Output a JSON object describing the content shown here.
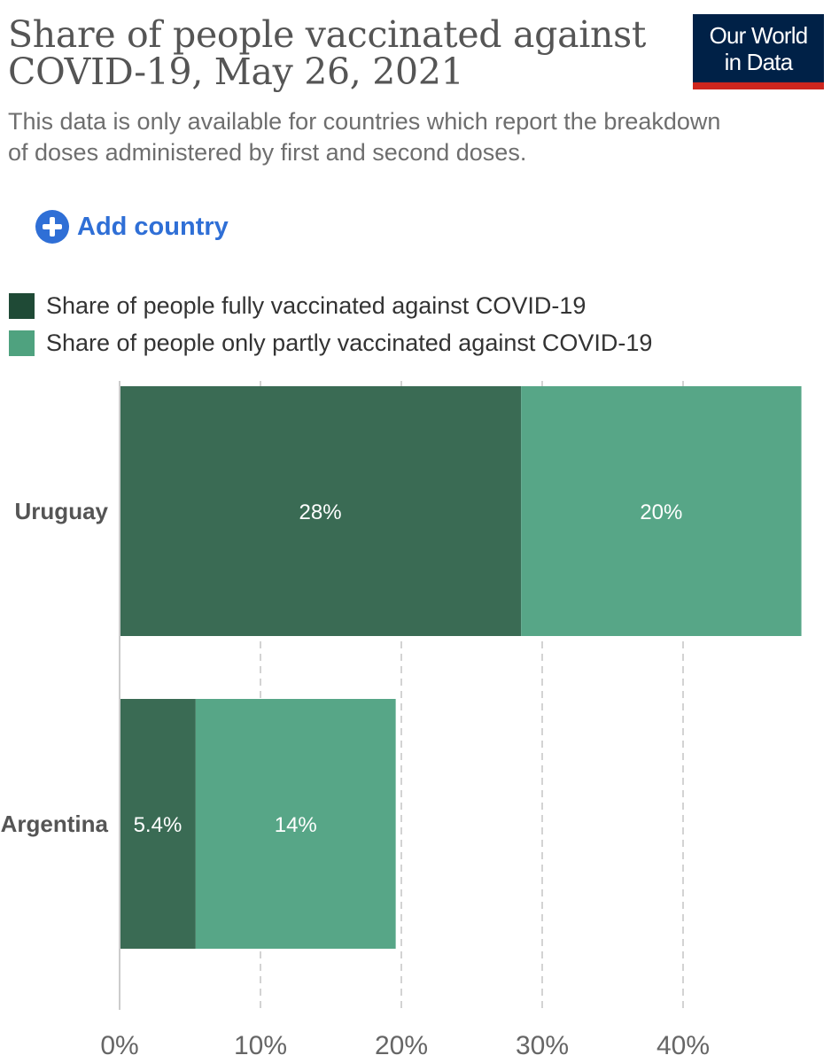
{
  "header": {
    "title": "Share of people vaccinated against COVID-19, May 26, 2021",
    "subtitle": "This data is only available for countries which report the breakdown of doses administered by first and second doses.",
    "logo_line1": "Our World",
    "logo_line2": "in Data"
  },
  "controls": {
    "add_country_label": "Add country"
  },
  "colors": {
    "fully_vaccinated": "#3a6b54",
    "partly_vaccinated": "#57a687",
    "legend_fully": "#1f4a36",
    "legend_partly": "#4fa27f",
    "logo_background": "#002147",
    "logo_bar": "#ce261e",
    "accent": "#2f6fd6"
  },
  "chart_data": {
    "type": "bar",
    "orientation": "horizontal",
    "stacked": true,
    "categories": [
      "Uruguay",
      "Argentina"
    ],
    "series": [
      {
        "name": "Share of people fully vaccinated against COVID-19",
        "values": [
          28.5,
          5.4
        ],
        "labels": [
          "28%",
          "5.4%"
        ]
      },
      {
        "name": "Share of people only partly vaccinated against COVID-19",
        "values": [
          19.9,
          14.2
        ],
        "labels": [
          "20%",
          "14%"
        ]
      }
    ],
    "xlim": [
      0,
      50
    ],
    "x_ticks": [
      0,
      10,
      20,
      30,
      40
    ],
    "x_tick_labels": [
      "0%",
      "10%",
      "20%",
      "30%",
      "40%"
    ],
    "grid": "vertical dashed",
    "legend_position": "top-left"
  }
}
